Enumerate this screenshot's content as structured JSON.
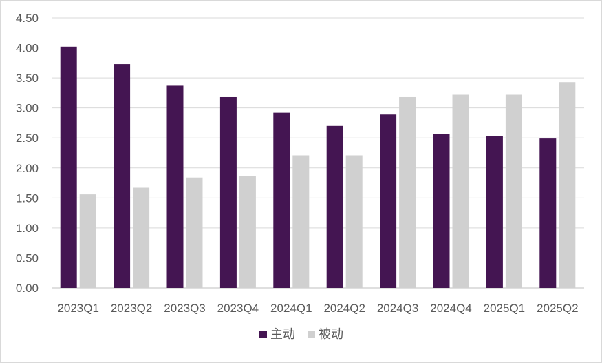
{
  "chart_data": {
    "type": "bar",
    "title": "",
    "xlabel": "",
    "ylabel": "",
    "categories": [
      "2023Q1",
      "2023Q2",
      "2023Q3",
      "2023Q4",
      "2024Q1",
      "2024Q2",
      "2024Q3",
      "2024Q4",
      "2025Q1",
      "2025Q2"
    ],
    "series": [
      {
        "name": "主动",
        "color": "#441552",
        "values": [
          4.02,
          3.73,
          3.37,
          3.18,
          2.92,
          2.7,
          2.89,
          2.57,
          2.53,
          2.49
        ]
      },
      {
        "name": "被动",
        "color": "#d0d0d0",
        "values": [
          1.56,
          1.67,
          1.84,
          1.87,
          2.21,
          2.21,
          3.18,
          3.22,
          3.22,
          3.43
        ]
      }
    ],
    "ylim": [
      0,
      4.5
    ],
    "yticks": [
      "0.00",
      "0.50",
      "1.00",
      "1.50",
      "2.00",
      "2.50",
      "3.00",
      "3.50",
      "4.00",
      "4.50"
    ],
    "grid": true,
    "legend_position": "bottom"
  }
}
